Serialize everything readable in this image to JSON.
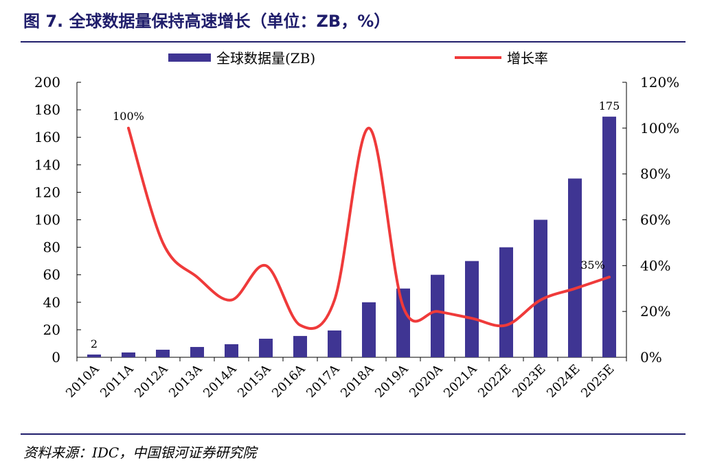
{
  "header": {
    "title": "图 7. 全球数据量保持高速增长（单位：ZB，%）"
  },
  "footer": {
    "source": "资料来源：IDC，中国银河证券研究院"
  },
  "colors": {
    "bar": "#3f3593",
    "line": "#ef3a3a",
    "title": "#1f1d6b",
    "axis": "#000000"
  },
  "chart_data": {
    "type": "bar+line",
    "categories": [
      "2010A",
      "2011A",
      "2012A",
      "2013A",
      "2014A",
      "2015A",
      "2016A",
      "2017A",
      "2018A",
      "2019A",
      "2020A",
      "2021A",
      "2022E",
      "2023E",
      "2024E",
      "2025E"
    ],
    "series": [
      {
        "name": "全球数据量(ZB)",
        "type": "bar",
        "axis": "left",
        "values": [
          2,
          3.5,
          5.5,
          7.5,
          9.5,
          13.5,
          15.5,
          19.5,
          40,
          50,
          60,
          70,
          80,
          100,
          130,
          175
        ]
      },
      {
        "name": "增长率",
        "type": "line",
        "axis": "right",
        "values": [
          null,
          100,
          50,
          35,
          25,
          40,
          14,
          25,
          100,
          22,
          20,
          17,
          14,
          25,
          30,
          35
        ]
      }
    ],
    "y_left": {
      "min": 0,
      "max": 200,
      "ticks": [
        0,
        20,
        40,
        60,
        80,
        100,
        120,
        140,
        160,
        180,
        200
      ]
    },
    "y_right": {
      "min": 0,
      "max": 120,
      "ticks": [
        "0%",
        "20%",
        "40%",
        "60%",
        "80%",
        "100%",
        "120%"
      ]
    },
    "data_labels": [
      {
        "series": 0,
        "index": 0,
        "text": "2"
      },
      {
        "series": 0,
        "index": 15,
        "text": "175"
      },
      {
        "series": 1,
        "index": 1,
        "text": "100%"
      },
      {
        "series": 1,
        "index": 15,
        "text": "35%"
      }
    ],
    "legend": "top-center",
    "grid": false
  }
}
